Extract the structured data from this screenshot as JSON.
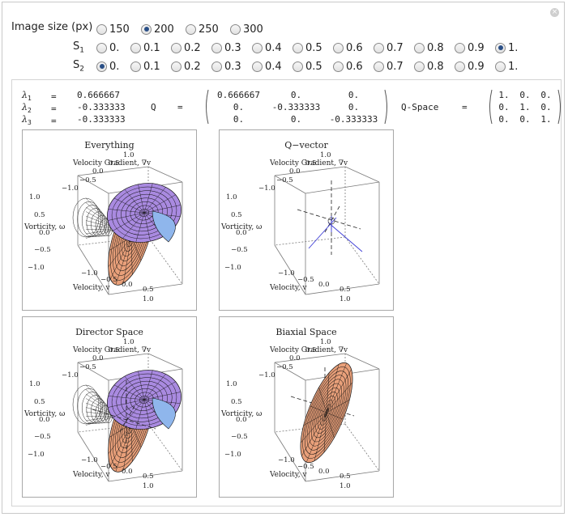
{
  "controls": {
    "image_size": {
      "label": "Image size (px)",
      "options": [
        "150",
        "200",
        "250",
        "300"
      ],
      "selected": "200"
    },
    "s1": {
      "label_main": "S",
      "label_sub": "1",
      "options": [
        "0.",
        "0.1",
        "0.2",
        "0.3",
        "0.4",
        "0.5",
        "0.6",
        "0.7",
        "0.8",
        "0.9",
        "1."
      ],
      "selected": "1."
    },
    "s2": {
      "label_main": "S",
      "label_sub": "2",
      "options": [
        "0.",
        "0.1",
        "0.2",
        "0.3",
        "0.4",
        "0.5",
        "0.6",
        "0.7",
        "0.8",
        "0.9",
        "1."
      ],
      "selected": "0."
    }
  },
  "eigen": {
    "l1": {
      "sym": "λ",
      "sub": "1",
      "eq": "=",
      "val": "0.666667"
    },
    "l2": {
      "sym": "λ",
      "sub": "2",
      "eq": "=",
      "val": "-0.333333"
    },
    "l3": {
      "sym": "λ",
      "sub": "3",
      "eq": "=",
      "val": "-0.333333"
    }
  },
  "q_matrix": {
    "label": "Q",
    "eq": "=",
    "rows": [
      [
        "0.666667",
        "0.",
        "0."
      ],
      [
        "0.",
        "-0.333333",
        "0."
      ],
      [
        "0.",
        "0.",
        "-0.333333"
      ]
    ]
  },
  "q_space": {
    "label": "Q-Space",
    "eq": "=",
    "rows": [
      [
        "1.",
        "0.",
        "0."
      ],
      [
        "0.",
        "1.",
        "0."
      ],
      [
        "0.",
        "0.",
        "1."
      ]
    ]
  },
  "plots": [
    {
      "title": "Everything",
      "kind": "everything"
    },
    {
      "title": "Q−vector",
      "kind": "qvector"
    },
    {
      "title": "Director Space",
      "kind": "director"
    },
    {
      "title": "Biaxial Space",
      "kind": "biaxial"
    }
  ],
  "axes": {
    "top_label": "Velocity Gradient, ∇v",
    "left_label": "Vorticity, ω",
    "bottom_label": "Velocity, v",
    "ticks": {
      "top": [
        "1.0",
        "0.5",
        "0.0",
        "−0.5",
        "−1.0"
      ],
      "left": [
        "1.0",
        "0.5",
        "0.0",
        "−0.5",
        "−1.0"
      ],
      "bottom": [
        "−1.0",
        "−0.5",
        "0.0",
        "0.5",
        "1.0"
      ]
    }
  },
  "colors": {
    "selected_radio": "#2a4f86",
    "ellipsoid_orange": "#e9a07a",
    "ellipsoid_purple": "#a98ae0",
    "ellipsoid_blue": "#8fb6ec"
  }
}
